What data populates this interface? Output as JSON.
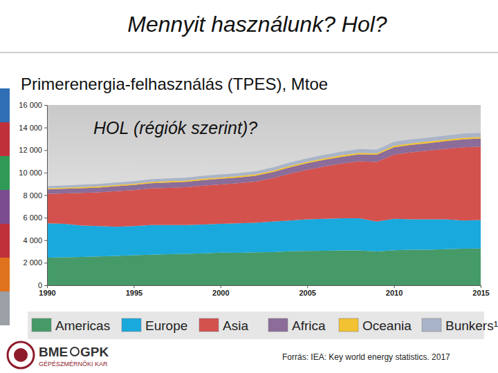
{
  "chart_data": {
    "type": "area",
    "stacked": true,
    "title": "Mennyit használunk? Hol?",
    "subtitle": "Primerenergia-felhasználás (TPES), Mtoe",
    "annotations": [
      "HOL (régiók szerint)?"
    ],
    "source": "Forrás: IEA: Key world energy statistics. 2017",
    "x": [
      1990,
      1991,
      1992,
      1993,
      1994,
      1995,
      1996,
      1997,
      1998,
      1999,
      2000,
      2001,
      2002,
      2003,
      2004,
      2005,
      2006,
      2007,
      2008,
      2009,
      2010,
      2011,
      2012,
      2013,
      2014,
      2015
    ],
    "xlim": [
      1990,
      2015
    ],
    "xticks": [
      1990,
      1995,
      2000,
      2005,
      2010,
      2015
    ],
    "ylim": [
      0,
      16000
    ],
    "yticks": [
      0,
      {
        "value": 2000,
        "label": "2 000"
      },
      {
        "value": 4000,
        "label": "4 000"
      },
      {
        "value": 6000,
        "label": "6 000"
      },
      {
        "value": 8000,
        "label": "8 000"
      },
      {
        "value": 10000,
        "label": "10 000"
      },
      {
        "value": 12000,
        "label": "12 000"
      },
      {
        "value": 14000,
        "label": "14 000"
      },
      {
        "value": 16000,
        "label": "16 000"
      }
    ],
    "grid": false,
    "legend": "bottom",
    "series": [
      {
        "name": "Americas",
        "color": "#469a68",
        "values": [
          2450,
          2480,
          2520,
          2560,
          2600,
          2660,
          2720,
          2760,
          2790,
          2830,
          2900,
          2880,
          2920,
          2940,
          3020,
          3050,
          3060,
          3100,
          3100,
          3000,
          3110,
          3150,
          3150,
          3200,
          3250,
          3270
        ]
      },
      {
        "name": "Europe",
        "color": "#1aa9dc",
        "values": [
          3050,
          2970,
          2780,
          2690,
          2600,
          2590,
          2630,
          2590,
          2560,
          2570,
          2550,
          2620,
          2630,
          2710,
          2730,
          2800,
          2840,
          2850,
          2850,
          2650,
          2790,
          2700,
          2700,
          2650,
          2500,
          2530
        ]
      },
      {
        "name": "Asia",
        "color": "#d4524e",
        "values": [
          2600,
          2700,
          2900,
          3000,
          3150,
          3200,
          3250,
          3300,
          3350,
          3450,
          3500,
          3550,
          3650,
          3850,
          4150,
          4400,
          4650,
          4850,
          5050,
          5300,
          5700,
          5950,
          6100,
          6250,
          6500,
          6500
        ]
      },
      {
        "name": "Africa",
        "color": "#8c6c98",
        "values": [
          400,
          410,
          420,
          430,
          440,
          450,
          460,
          470,
          480,
          490,
          500,
          510,
          520,
          540,
          560,
          580,
          590,
          600,
          620,
          630,
          650,
          660,
          670,
          690,
          700,
          720
        ]
      },
      {
        "name": "Oceania",
        "color": "#f2c232",
        "values": [
          100,
          100,
          105,
          105,
          110,
          110,
          110,
          115,
          115,
          120,
          120,
          120,
          125,
          125,
          130,
          130,
          130,
          135,
          135,
          135,
          140,
          140,
          145,
          145,
          145,
          150
        ]
      },
      {
        "name": "Bunkers¹",
        "color": "#aab4c8",
        "values": [
          200,
          205,
          210,
          215,
          220,
          230,
          240,
          250,
          255,
          260,
          270,
          270,
          275,
          285,
          300,
          310,
          320,
          330,
          330,
          320,
          340,
          345,
          345,
          350,
          355,
          360
        ]
      }
    ]
  },
  "logo": [
    "BME",
    "GPK",
    "GÉPÉSZMÉRNÖKI KAR"
  ]
}
